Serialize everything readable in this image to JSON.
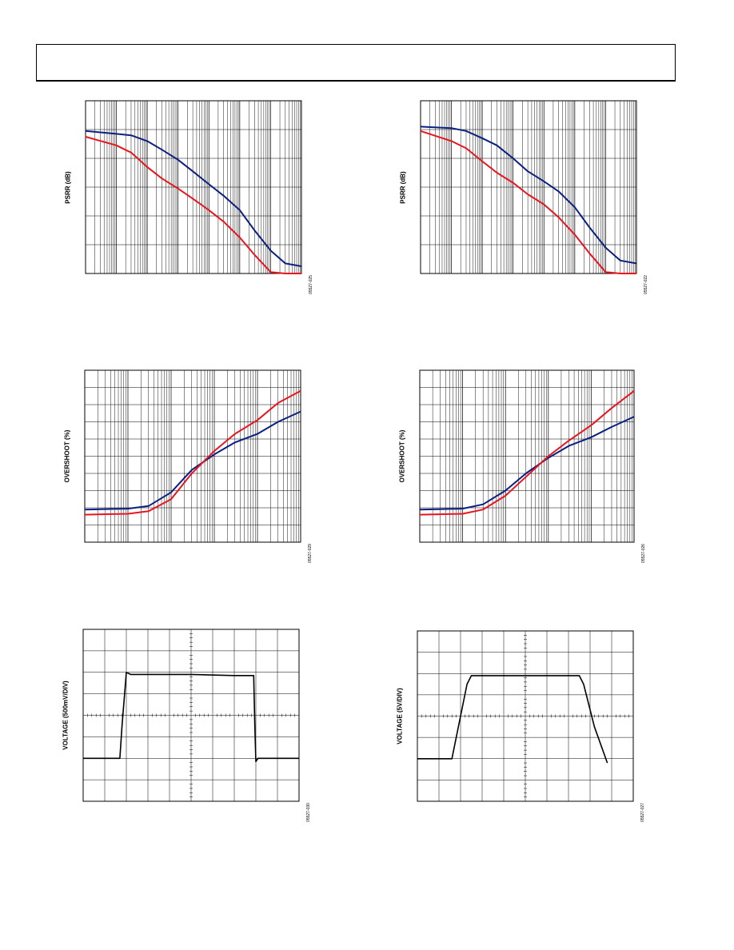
{
  "chart_data": [
    {
      "type": "line",
      "xscale": "log",
      "title": "",
      "xlabel": "",
      "ylabel": "PSRR (dB)",
      "xlim": [
        1,
        10000000
      ],
      "ylim": [
        0,
        6
      ],
      "grid": true,
      "series": [
        {
          "color": "#0a1f80",
          "x": [
            1,
            10,
            30,
            100,
            300,
            1000,
            3000,
            10000,
            30000,
            100000,
            300000,
            1000000,
            3000000,
            10000000
          ],
          "y": [
            4.95,
            4.85,
            4.8,
            4.6,
            4.3,
            3.95,
            3.55,
            3.1,
            2.7,
            2.2,
            1.5,
            0.8,
            0.35,
            0.25
          ]
        },
        {
          "color": "#e8141e",
          "x": [
            1,
            10,
            30,
            100,
            300,
            1000,
            3000,
            10000,
            30000,
            100000,
            300000,
            1000000,
            3000000,
            10000000
          ],
          "y": [
            4.75,
            4.45,
            4.2,
            3.7,
            3.3,
            2.95,
            2.6,
            2.2,
            1.8,
            1.25,
            0.65,
            0.05,
            0.0,
            0.0
          ]
        }
      ],
      "fig_id": "05527-025"
    },
    {
      "type": "line",
      "xscale": "log",
      "title": "",
      "xlabel": "",
      "ylabel": "PSRR (dB)",
      "xlim": [
        1,
        10000000
      ],
      "ylim": [
        0,
        6
      ],
      "grid": true,
      "series": [
        {
          "color": "#0a1f80",
          "x": [
            1,
            10,
            30,
            100,
            300,
            1000,
            3000,
            10000,
            30000,
            100000,
            300000,
            1000000,
            3000000,
            10000000
          ],
          "y": [
            5.1,
            5.05,
            4.95,
            4.7,
            4.45,
            4.0,
            3.55,
            3.2,
            2.85,
            2.3,
            1.6,
            0.9,
            0.45,
            0.35
          ]
        },
        {
          "color": "#e8141e",
          "x": [
            1,
            10,
            30,
            100,
            300,
            1000,
            3000,
            10000,
            30000,
            100000,
            300000,
            1000000,
            3000000,
            10000000
          ],
          "y": [
            4.95,
            4.6,
            4.35,
            3.9,
            3.5,
            3.15,
            2.75,
            2.4,
            1.95,
            1.35,
            0.7,
            0.05,
            0.0,
            0.0
          ]
        }
      ],
      "fig_id": "05527-022"
    },
    {
      "type": "line",
      "xscale": "log",
      "title": "",
      "xlabel": "",
      "ylabel": "OVERSHOOT (%)",
      "xlim": [
        1,
        100000
      ],
      "ylim": [
        0,
        10
      ],
      "grid": true,
      "series": [
        {
          "color": "#0a1f80",
          "x": [
            1,
            10,
            30,
            100,
            300,
            1000,
            3000,
            10000,
            30000,
            100000
          ],
          "y": [
            1.9,
            1.95,
            2.1,
            2.9,
            4.2,
            5.1,
            5.8,
            6.3,
            7.0,
            7.6
          ]
        },
        {
          "color": "#e8141e",
          "x": [
            1,
            10,
            30,
            100,
            300,
            1000,
            3000,
            10000,
            30000,
            100000
          ],
          "y": [
            1.6,
            1.65,
            1.8,
            2.5,
            4.0,
            5.3,
            6.3,
            7.1,
            8.1,
            8.8
          ]
        }
      ],
      "fig_id": "05527-029"
    },
    {
      "type": "line",
      "xscale": "log",
      "title": "",
      "xlabel": "",
      "ylabel": "OVERSHOOT (%)",
      "xlim": [
        1,
        100000
      ],
      "ylim": [
        0,
        10
      ],
      "grid": true,
      "series": [
        {
          "color": "#0a1f80",
          "x": [
            1,
            10,
            30,
            100,
            300,
            1000,
            3000,
            10000,
            30000,
            100000
          ],
          "y": [
            1.9,
            1.95,
            2.2,
            3.0,
            4.0,
            4.9,
            5.6,
            6.1,
            6.7,
            7.3
          ]
        },
        {
          "color": "#e8141e",
          "x": [
            1,
            10,
            30,
            100,
            300,
            1000,
            3000,
            10000,
            30000,
            100000
          ],
          "y": [
            1.6,
            1.65,
            1.9,
            2.7,
            3.8,
            5.0,
            5.9,
            6.8,
            7.8,
            8.8
          ]
        }
      ],
      "fig_id": "05527-026"
    },
    {
      "type": "line",
      "xscale": "linear",
      "title": "",
      "xlabel": "",
      "ylabel": "VOLTAGE (500mV/DIV)",
      "xlim": [
        0,
        10
      ],
      "ylim": [
        0,
        8
      ],
      "grid": true,
      "series": [
        {
          "color": "#000000",
          "x": [
            0,
            1.7,
            1.8,
            2.0,
            2.2,
            3,
            5,
            7,
            7.9,
            7.95,
            8.0,
            8.1,
            10
          ],
          "y": [
            2.0,
            2.0,
            3.5,
            6.0,
            5.9,
            5.9,
            5.9,
            5.85,
            5.85,
            3.5,
            1.85,
            2.0,
            2.0
          ]
        }
      ],
      "fig_id": "05527-030"
    },
    {
      "type": "line",
      "xscale": "linear",
      "title": "",
      "xlabel": "",
      "ylabel": "VOLTAGE (5V/DIV)",
      "xlim": [
        0,
        10
      ],
      "ylim": [
        0,
        8
      ],
      "grid": true,
      "series": [
        {
          "color": "#000000",
          "x": [
            0,
            1.6,
            2.0,
            2.3,
            2.5,
            4,
            6,
            7.5,
            7.7,
            8.2,
            8.8
          ],
          "y": [
            2.0,
            2.0,
            4.0,
            5.5,
            5.9,
            5.9,
            5.9,
            5.9,
            5.5,
            3.5,
            1.8
          ]
        }
      ],
      "fig_id": "05527-027"
    }
  ]
}
